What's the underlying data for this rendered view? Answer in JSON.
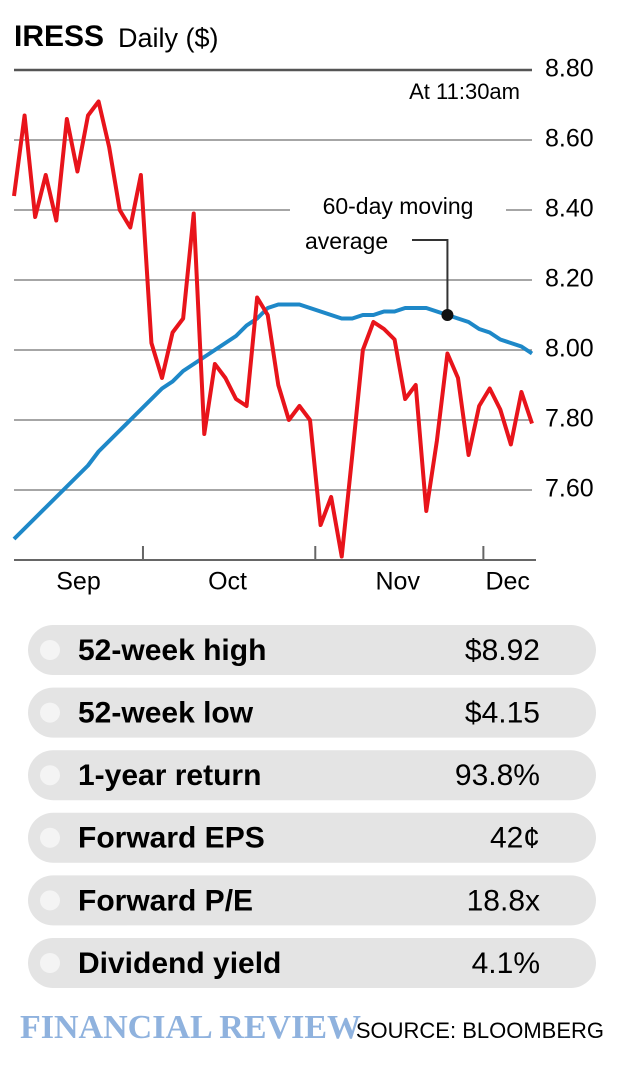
{
  "chart_data": {
    "type": "line",
    "title": "IRESS",
    "subtitle": "Daily ($)",
    "note": "At 11:30am",
    "annotation": [
      "60-day moving",
      "average"
    ],
    "xlim": [
      0,
      49
    ],
    "xticks": [
      12.2,
      28.5,
      44.4
    ],
    "month_labels": [
      {
        "value": 6.1,
        "label": "Sep"
      },
      {
        "value": 20.2,
        "label": "Oct"
      },
      {
        "value": 36.3,
        "label": "Nov"
      },
      {
        "value": 46.7,
        "label": "Dec"
      }
    ],
    "ylim": [
      7.4,
      8.8
    ],
    "yticks": [
      {
        "value": 7.6,
        "label": "7.60"
      },
      {
        "value": 7.8,
        "label": "7.80"
      },
      {
        "value": 8.0,
        "label": "8.00"
      },
      {
        "value": 8.2,
        "label": "8.20"
      },
      {
        "value": 8.4,
        "label": "8.40"
      },
      {
        "value": 8.6,
        "label": "8.60"
      },
      {
        "value": 8.8,
        "label": "8.80"
      }
    ],
    "grid": true,
    "series": [
      {
        "color": "#e8141b",
        "values": [
          8.44,
          8.67,
          8.38,
          8.5,
          8.37,
          8.66,
          8.51,
          8.67,
          8.71,
          8.58,
          8.4,
          8.35,
          8.5,
          8.02,
          7.92,
          8.05,
          8.09,
          8.39,
          7.76,
          7.96,
          7.92,
          7.86,
          7.84,
          8.15,
          8.1,
          7.9,
          7.8,
          7.84,
          7.8,
          7.5,
          7.58,
          7.41,
          7.7,
          8.0,
          8.08,
          8.06,
          8.03,
          7.86,
          7.9,
          7.54,
          7.74,
          7.99,
          7.92,
          7.7,
          7.84,
          7.89,
          7.83,
          7.73,
          7.88,
          7.79
        ]
      },
      {
        "color": "#1e88c8",
        "values": [
          7.46,
          7.49,
          7.52,
          7.55,
          7.58,
          7.61,
          7.64,
          7.67,
          7.71,
          7.74,
          7.77,
          7.8,
          7.83,
          7.86,
          7.89,
          7.91,
          7.94,
          7.96,
          7.98,
          8.0,
          8.02,
          8.04,
          8.07,
          8.09,
          8.12,
          8.13,
          8.13,
          8.13,
          8.12,
          8.11,
          8.1,
          8.09,
          8.09,
          8.1,
          8.1,
          8.11,
          8.11,
          8.12,
          8.12,
          8.12,
          8.11,
          8.1,
          8.09,
          8.08,
          8.06,
          8.05,
          8.03,
          8.02,
          8.01,
          7.99
        ]
      }
    ]
  },
  "stats": {
    "rows": [
      [
        "52-week high",
        "$8.92"
      ],
      [
        "52-week low",
        "$4.15"
      ],
      [
        "1-year return",
        "93.8%"
      ],
      [
        "Forward EPS",
        "42¢"
      ],
      [
        "Forward P/E",
        "18.8x"
      ],
      [
        "Dividend yield",
        "4.1%"
      ]
    ]
  },
  "footer": {
    "logo": "FINANCIAL REVIEW",
    "source": "SOURCE: BLOOMBERG"
  }
}
